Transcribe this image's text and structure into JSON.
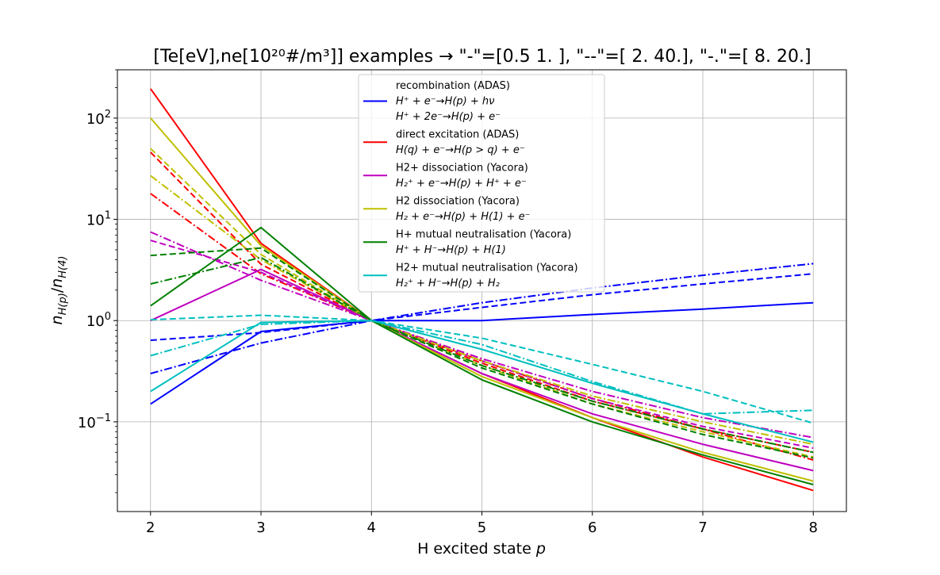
{
  "chart_data": {
    "type": "line",
    "title": "[Te[eV],ne[10²⁰#/m³]] examples → \"-\"=[0.5 1. ], \"--\"=[ 2. 40.], \"-.\"=[ 8. 20.]",
    "xlabel": "H excited state p",
    "ylabel": "n_H(p)/n_H(4)",
    "x": [
      2,
      3,
      4,
      5,
      6,
      7,
      8
    ],
    "xlim": [
      1.7,
      8.3
    ],
    "ylim": [
      0.013,
      300
    ],
    "yscale": "log",
    "x_ticks": [
      "2",
      "3",
      "4",
      "5",
      "6",
      "7",
      "8"
    ],
    "y_ticks": [
      {
        "value": 0.1,
        "base": "10",
        "exp": "−1"
      },
      {
        "value": 1,
        "base": "10",
        "exp": "0"
      },
      {
        "value": 10,
        "base": "10",
        "exp": "1"
      },
      {
        "value": 100,
        "base": "10",
        "exp": "2"
      }
    ],
    "grid": true,
    "legend_position": "top-center",
    "line_styles": {
      "solid": "-",
      "dashed": "--",
      "dashdot": "-."
    },
    "legend": [
      {
        "color": "#0000ff",
        "lines": [
          "recombination (ADAS)",
          "H⁺ + e⁻→H(p) + hν",
          "H⁺ + 2e⁻→H(p) + e⁻"
        ]
      },
      {
        "color": "#ff0000",
        "lines": [
          "direct excitation (ADAS)",
          "H(q) + e⁻→H(p > q) + e⁻"
        ]
      },
      {
        "color": "#bf00bf",
        "lines": [
          "H2+ dissociation (Yacora)",
          "H₂⁺ + e⁻→H(p) + H⁺ + e⁻"
        ]
      },
      {
        "color": "#bfbf00",
        "lines": [
          "H2 dissociation (Yacora)",
          "H₂ + e⁻→H(p) + H(1) + e⁻"
        ]
      },
      {
        "color": "#008000",
        "lines": [
          "H+ mutual neutralisation (Yacora)",
          "H⁺ + H⁻→H(p) + H(1)"
        ]
      },
      {
        "color": "#00bfbf",
        "lines": [
          "H2+ mutual neutralisation (Yacora)",
          "H₂⁺ + H⁻→H(p) + H₂"
        ]
      }
    ],
    "series": [
      {
        "color": "#0000ff",
        "style": "solid",
        "values": [
          0.15,
          0.78,
          1.0,
          1.0,
          1.15,
          1.3,
          1.5
        ]
      },
      {
        "color": "#0000ff",
        "style": "dashed",
        "values": [
          0.64,
          0.76,
          1.0,
          1.35,
          1.8,
          2.3,
          2.9
        ]
      },
      {
        "color": "#0000ff",
        "style": "dashdot",
        "values": [
          0.3,
          0.6,
          1.0,
          1.5,
          2.1,
          2.8,
          3.65
        ]
      },
      {
        "color": "#ff0000",
        "style": "solid",
        "values": [
          195,
          5.8,
          1.0,
          0.3,
          0.11,
          0.045,
          0.021
        ]
      },
      {
        "color": "#ff0000",
        "style": "dashed",
        "values": [
          46,
          3.6,
          1.0,
          0.38,
          0.16,
          0.085,
          0.05
        ]
      },
      {
        "color": "#ff0000",
        "style": "dashdot",
        "values": [
          18,
          2.9,
          1.0,
          0.4,
          0.17,
          0.085,
          0.042
        ]
      },
      {
        "color": "#bf00bf",
        "style": "solid",
        "values": [
          1.0,
          3.2,
          1.0,
          0.3,
          0.12,
          0.06,
          0.033
        ]
      },
      {
        "color": "#bf00bf",
        "style": "dashed",
        "values": [
          6.2,
          3.0,
          1.0,
          0.4,
          0.17,
          0.09,
          0.055
        ]
      },
      {
        "color": "#bf00bf",
        "style": "dashdot",
        "values": [
          7.5,
          2.5,
          1.0,
          0.42,
          0.2,
          0.11,
          0.07
        ]
      },
      {
        "color": "#bfbf00",
        "style": "solid",
        "values": [
          100,
          5.5,
          1.0,
          0.28,
          0.11,
          0.05,
          0.026
        ]
      },
      {
        "color": "#bfbf00",
        "style": "dashed",
        "values": [
          50,
          4.5,
          1.0,
          0.36,
          0.15,
          0.08,
          0.045
        ]
      },
      {
        "color": "#bfbf00",
        "style": "dashdot",
        "values": [
          27,
          4.0,
          1.0,
          0.4,
          0.18,
          0.1,
          0.06
        ]
      },
      {
        "color": "#008000",
        "style": "solid",
        "values": [
          1.4,
          8.3,
          1.0,
          0.26,
          0.1,
          0.047,
          0.024
        ]
      },
      {
        "color": "#008000",
        "style": "dashed",
        "values": [
          4.4,
          5.2,
          1.0,
          0.34,
          0.15,
          0.075,
          0.044
        ]
      },
      {
        "color": "#008000",
        "style": "dashdot",
        "values": [
          2.3,
          4.2,
          1.0,
          0.36,
          0.16,
          0.085,
          0.05
        ]
      },
      {
        "color": "#00bfbf",
        "style": "solid",
        "values": [
          0.2,
          0.96,
          1.0,
          0.52,
          0.24,
          0.12,
          0.063
        ]
      },
      {
        "color": "#00bfbf",
        "style": "dashed",
        "values": [
          1.02,
          1.13,
          1.0,
          0.67,
          0.37,
          0.2,
          0.097
        ]
      },
      {
        "color": "#00bfbf",
        "style": "dashdot",
        "values": [
          0.45,
          0.92,
          1.0,
          0.58,
          0.25,
          0.12,
          0.13
        ]
      }
    ]
  }
}
